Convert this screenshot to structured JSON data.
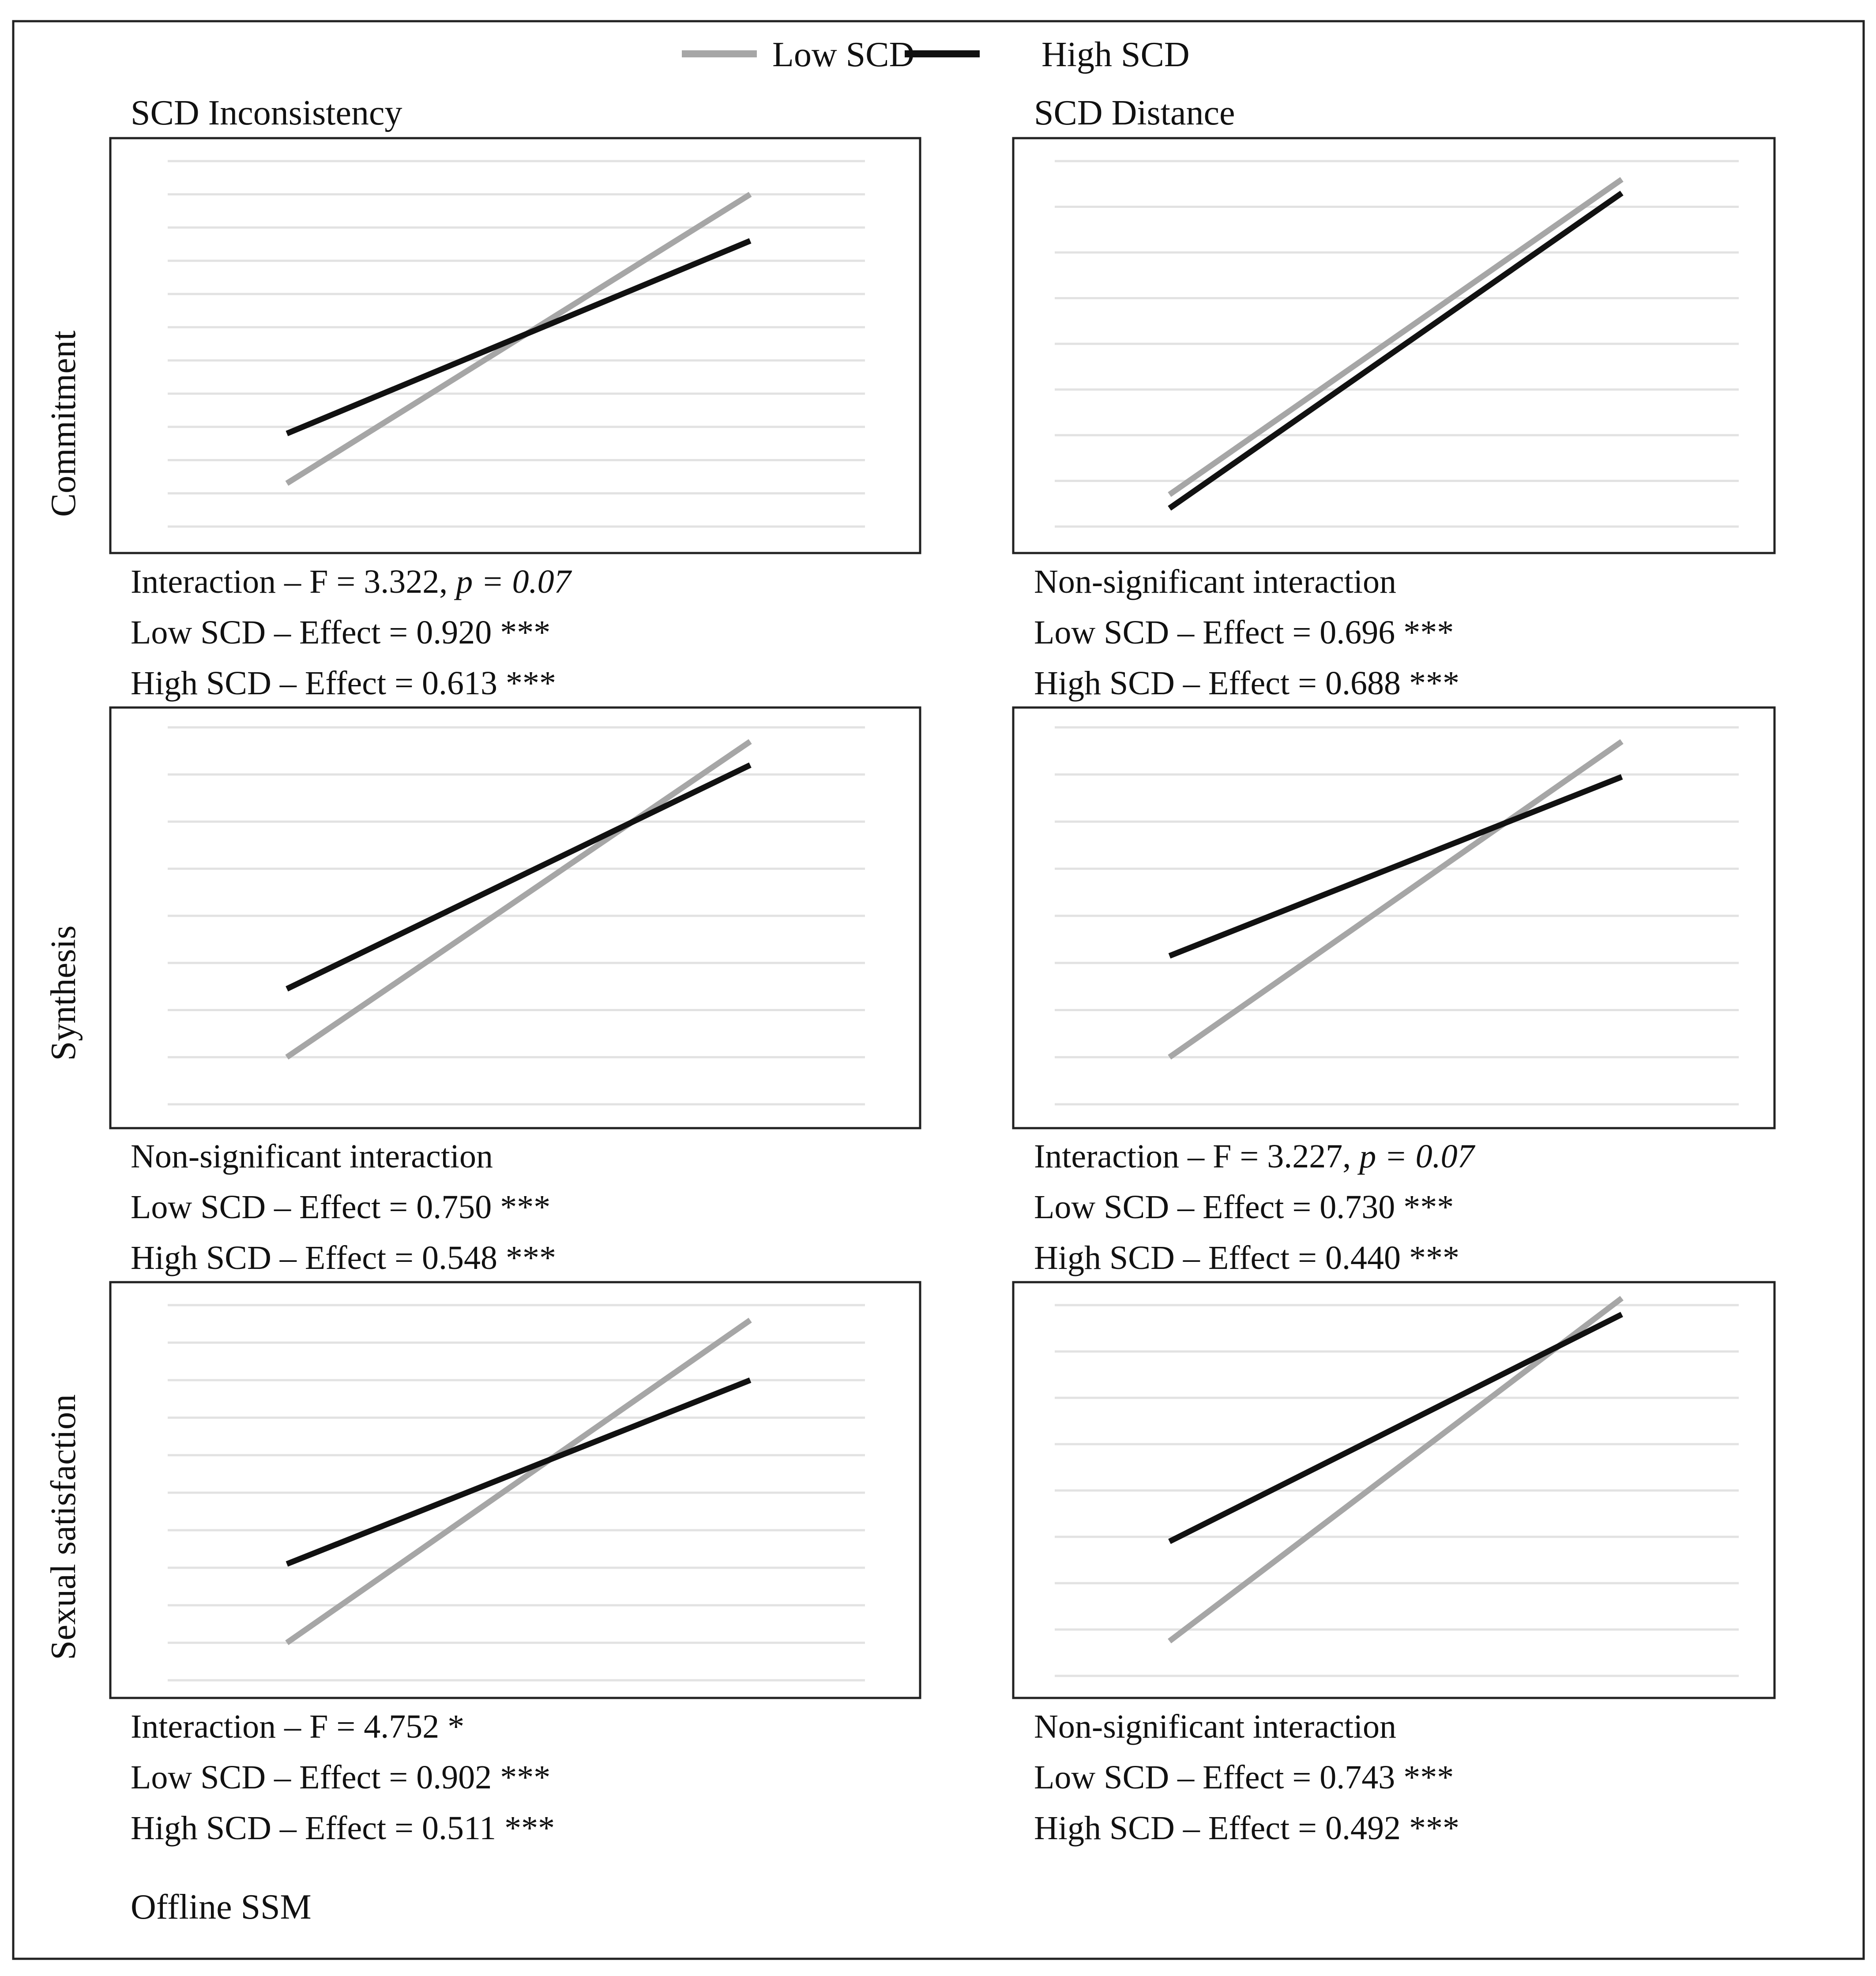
{
  "legend": {
    "items": [
      {
        "name": "Low SCD",
        "color": "#a6a6a6"
      },
      {
        "name": "High SCD",
        "color": "#111111"
      }
    ]
  },
  "column_titles": [
    "SCD Inconsistency",
    "SCD Distance"
  ],
  "row_labels": [
    "Commitment",
    "Synthesis",
    "Sexual satisfaction"
  ],
  "footer": "Offline SSM",
  "chart_data": [
    {
      "type": "line",
      "title": "SCD Inconsistency",
      "ylabel": "Commitment",
      "x": [
        0,
        1
      ],
      "ylim": [
        0,
        11
      ],
      "series": [
        {
          "name": "Low SCD",
          "values": [
            1.3,
            10.0
          ]
        },
        {
          "name": "High SCD",
          "values": [
            2.8,
            8.6
          ]
        }
      ],
      "annotations": [
        "Interaction – F = 3.322, ",
        "p = 0.07",
        "Low SCD – Effect = 0.920 ***",
        "High SCD – Effect = 0.613 ***"
      ]
    },
    {
      "type": "line",
      "title": "SCD Distance",
      "ylabel": "Commitment",
      "x": [
        0,
        1
      ],
      "ylim": [
        0,
        8
      ],
      "series": [
        {
          "name": "Low SCD",
          "values": [
            0.7,
            7.6
          ]
        },
        {
          "name": "High SCD",
          "values": [
            0.4,
            7.3
          ]
        }
      ],
      "annotations": [
        "Non-significant interaction",
        "Low SCD – Effect = 0.696 ***",
        "High SCD – Effect = 0.688 ***"
      ]
    },
    {
      "type": "line",
      "title": "",
      "ylabel": "Synthesis",
      "x": [
        0,
        1
      ],
      "ylim": [
        0,
        8
      ],
      "series": [
        {
          "name": "Low SCD",
          "values": [
            1.0,
            7.7
          ]
        },
        {
          "name": "High SCD",
          "values": [
            2.45,
            7.2
          ]
        }
      ],
      "annotations": [
        "Non-significant interaction",
        "Low SCD – Effect = 0.750 ***",
        "High SCD – Effect = 0.548 ***"
      ]
    },
    {
      "type": "line",
      "title": "",
      "ylabel": "Synthesis",
      "x": [
        0,
        1
      ],
      "ylim": [
        0,
        8
      ],
      "series": [
        {
          "name": "Low SCD",
          "values": [
            1.0,
            7.7
          ]
        },
        {
          "name": "High SCD",
          "values": [
            3.15,
            6.95
          ]
        }
      ],
      "annotations": [
        "Interaction – F = 3.227, ",
        "p = 0.07",
        "Low SCD – Effect = 0.730 ***",
        "High SCD – Effect = 0.440 ***"
      ]
    },
    {
      "type": "line",
      "title": "",
      "ylabel": "Sexual satisfaction",
      "x": [
        0,
        1
      ],
      "ylim": [
        0,
        10
      ],
      "series": [
        {
          "name": "Low SCD",
          "values": [
            1.0,
            9.6
          ]
        },
        {
          "name": "High SCD",
          "values": [
            3.1,
            8.0
          ]
        }
      ],
      "annotations": [
        "Interaction – F = 4.752 *",
        "Low SCD – Effect = 0.902 ***",
        "High SCD – Effect = 0.511 ***"
      ]
    },
    {
      "type": "line",
      "title": "",
      "ylabel": "Sexual satisfaction",
      "x": [
        0,
        1
      ],
      "ylim": [
        0,
        8
      ],
      "series": [
        {
          "name": "Low SCD",
          "values": [
            0.75,
            8.15
          ]
        },
        {
          "name": "High SCD",
          "values": [
            2.9,
            7.8
          ]
        }
      ],
      "annotations": [
        "Non-significant interaction",
        "Low SCD – Effect = 0.743 ***",
        "High SCD – Effect = 0.492 ***"
      ]
    }
  ]
}
